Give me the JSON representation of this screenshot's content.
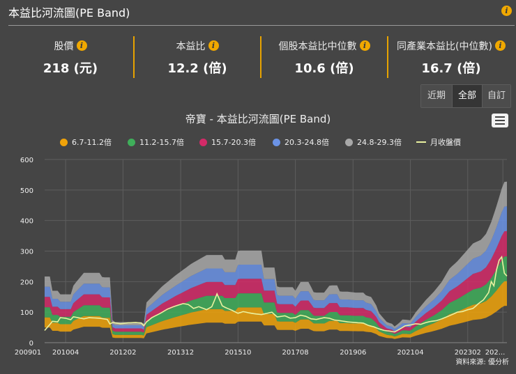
{
  "header": {
    "title": "本益比河流圖(PE Band)",
    "info_icon": "info-icon"
  },
  "metrics": [
    {
      "label": "股價",
      "value": "218 (元)"
    },
    {
      "label": "本益比",
      "value": "12.2 (倍)"
    },
    {
      "label": "個股本益比中位數",
      "value": "10.6 (倍)"
    },
    {
      "label": "同產業本益比(中位數)",
      "value": "16.7 (倍)"
    }
  ],
  "range_buttons": [
    {
      "label": "近期",
      "active": false
    },
    {
      "label": "全部",
      "active": true
    },
    {
      "label": "自訂",
      "active": false
    }
  ],
  "source": "資料來源: 優分析",
  "chart_data": {
    "type": "area",
    "title": "帝寶 - 本益比河流圖(PE Band)",
    "ylim": [
      0,
      600
    ],
    "yticks": [
      0,
      100,
      200,
      300,
      400,
      500,
      600
    ],
    "x_range": [
      2009.58,
      2024.33
    ],
    "xtick_labels": [
      {
        "label": "200901",
        "x": 2009.0
      },
      {
        "label": "201004",
        "x": 2010.25
      },
      {
        "label": "201202",
        "x": 2012.08
      },
      {
        "label": "201312",
        "x": 2013.92
      },
      {
        "label": "201510",
        "x": 2015.75
      },
      {
        "label": "201708",
        "x": 2017.58
      },
      {
        "label": "201906",
        "x": 2019.42
      },
      {
        "label": "202104",
        "x": 2021.25
      },
      {
        "label": "202302",
        "x": 2023.08
      },
      {
        "label": "202...",
        "x": 2024.2
      }
    ],
    "legend_position": "top-center",
    "series": [
      {
        "name": "6.7-11.2倍",
        "color": "#f0a30a"
      },
      {
        "name": "11.2-15.7倍",
        "color": "#3fae5a"
      },
      {
        "name": "15.7-20.3倍",
        "color": "#d32a68"
      },
      {
        "name": "20.3-24.8倍",
        "color": "#6b93e6"
      },
      {
        "name": "24.8-29.3倍",
        "color": "#a8a8a8"
      },
      {
        "name": "月收盤價",
        "color": "#eaf2a0"
      }
    ],
    "band_top_eps_anchors": [
      [
        2009.58,
        7.4
      ],
      [
        2009.75,
        7.4
      ],
      [
        2009.83,
        5.8
      ],
      [
        2010.0,
        5.8
      ],
      [
        2010.08,
        5.4
      ],
      [
        2010.25,
        5.4
      ],
      [
        2010.42,
        5.4
      ],
      [
        2010.5,
        6.4
      ],
      [
        2010.83,
        7.8
      ],
      [
        2011.33,
        7.8
      ],
      [
        2011.42,
        7.3
      ],
      [
        2011.67,
        7.3
      ],
      [
        2011.75,
        2.3
      ],
      [
        2012.0,
        2.3
      ],
      [
        2012.5,
        2.3
      ],
      [
        2012.67,
        2.3
      ],
      [
        2012.75,
        2.1
      ],
      [
        2012.83,
        4.5
      ],
      [
        2013.33,
        6.3
      ],
      [
        2013.75,
        7.5
      ],
      [
        2014.25,
        8.8
      ],
      [
        2014.75,
        9.8
      ],
      [
        2015.25,
        9.8
      ],
      [
        2015.33,
        9.3
      ],
      [
        2015.67,
        9.3
      ],
      [
        2015.75,
        10.3
      ],
      [
        2016.5,
        10.3
      ],
      [
        2016.58,
        8.4
      ],
      [
        2016.92,
        8.4
      ],
      [
        2017.0,
        6.2
      ],
      [
        2017.5,
        6.2
      ],
      [
        2017.58,
        5.8
      ],
      [
        2017.75,
        6.8
      ],
      [
        2018.0,
        6.8
      ],
      [
        2018.17,
        5.6
      ],
      [
        2018.5,
        5.6
      ],
      [
        2018.67,
        6.4
      ],
      [
        2018.92,
        6.4
      ],
      [
        2019.0,
        5.7
      ],
      [
        2019.25,
        5.7
      ],
      [
        2019.5,
        5.6
      ],
      [
        2019.75,
        5.6
      ],
      [
        2019.83,
        5.3
      ],
      [
        2020.0,
        5.1
      ],
      [
        2020.17,
        4.1
      ],
      [
        2020.25,
        3.3
      ],
      [
        2020.5,
        2.3
      ],
      [
        2020.67,
        2.1
      ],
      [
        2020.75,
        1.8
      ],
      [
        2020.92,
        2.3
      ],
      [
        2021.0,
        2.6
      ],
      [
        2021.25,
        2.5
      ],
      [
        2021.42,
        3.4
      ],
      [
        2021.75,
        4.8
      ],
      [
        2022.0,
        5.7
      ],
      [
        2022.25,
        6.8
      ],
      [
        2022.5,
        8.3
      ],
      [
        2022.75,
        9.1
      ],
      [
        2023.0,
        10.1
      ],
      [
        2023.25,
        11.1
      ],
      [
        2023.5,
        11.5
      ],
      [
        2023.67,
        12.2
      ],
      [
        2023.83,
        13.5
      ],
      [
        2024.0,
        15.3
      ],
      [
        2024.17,
        17.3
      ],
      [
        2024.25,
        18.0
      ],
      [
        2024.33,
        18.0
      ]
    ],
    "band_multipliers": [
      6.7,
      11.2,
      15.7,
      20.3,
      24.8,
      29.3
    ],
    "price_anchors": [
      [
        2009.58,
        40
      ],
      [
        2009.75,
        60
      ],
      [
        2009.83,
        70
      ],
      [
        2010.0,
        68
      ],
      [
        2010.08,
        82
      ],
      [
        2010.25,
        80
      ],
      [
        2010.42,
        75
      ],
      [
        2010.5,
        85
      ],
      [
        2010.83,
        78
      ],
      [
        2011.0,
        82
      ],
      [
        2011.33,
        80
      ],
      [
        2011.58,
        76
      ],
      [
        2011.67,
        60
      ],
      [
        2011.75,
        66
      ],
      [
        2012.0,
        62
      ],
      [
        2012.25,
        65
      ],
      [
        2012.5,
        66
      ],
      [
        2012.67,
        64
      ],
      [
        2012.75,
        55
      ],
      [
        2012.83,
        68
      ],
      [
        2013.0,
        82
      ],
      [
        2013.25,
        95
      ],
      [
        2013.5,
        110
      ],
      [
        2013.75,
        120
      ],
      [
        2014.0,
        128
      ],
      [
        2014.17,
        125
      ],
      [
        2014.33,
        112
      ],
      [
        2014.5,
        118
      ],
      [
        2014.75,
        108
      ],
      [
        2014.92,
        118
      ],
      [
        2015.08,
        160
      ],
      [
        2015.25,
        120
      ],
      [
        2015.42,
        112
      ],
      [
        2015.58,
        105
      ],
      [
        2015.75,
        96
      ],
      [
        2015.92,
        102
      ],
      [
        2016.08,
        98
      ],
      [
        2016.25,
        95
      ],
      [
        2016.5,
        92
      ],
      [
        2016.67,
        96
      ],
      [
        2016.83,
        100
      ],
      [
        2017.0,
        84
      ],
      [
        2017.25,
        88
      ],
      [
        2017.42,
        80
      ],
      [
        2017.58,
        82
      ],
      [
        2017.75,
        90
      ],
      [
        2017.92,
        86
      ],
      [
        2018.08,
        78
      ],
      [
        2018.25,
        76
      ],
      [
        2018.5,
        82
      ],
      [
        2018.67,
        80
      ],
      [
        2018.83,
        74
      ],
      [
        2019.0,
        72
      ],
      [
        2019.25,
        68
      ],
      [
        2019.5,
        66
      ],
      [
        2019.75,
        64
      ],
      [
        2019.92,
        56
      ],
      [
        2020.08,
        52
      ],
      [
        2020.25,
        45
      ],
      [
        2020.42,
        40
      ],
      [
        2020.58,
        38
      ],
      [
        2020.75,
        35
      ],
      [
        2020.92,
        45
      ],
      [
        2021.08,
        55
      ],
      [
        2021.25,
        58
      ],
      [
        2021.42,
        62
      ],
      [
        2021.58,
        60
      ],
      [
        2021.75,
        66
      ],
      [
        2021.92,
        70
      ],
      [
        2022.08,
        72
      ],
      [
        2022.25,
        78
      ],
      [
        2022.42,
        85
      ],
      [
        2022.58,
        92
      ],
      [
        2022.75,
        100
      ],
      [
        2022.92,
        102
      ],
      [
        2023.08,
        108
      ],
      [
        2023.25,
        112
      ],
      [
        2023.42,
        128
      ],
      [
        2023.58,
        140
      ],
      [
        2023.75,
        165
      ],
      [
        2023.83,
        200
      ],
      [
        2023.92,
        185
      ],
      [
        2024.0,
        240
      ],
      [
        2024.08,
        270
      ],
      [
        2024.17,
        282
      ],
      [
        2024.25,
        225
      ],
      [
        2024.33,
        218
      ]
    ]
  }
}
